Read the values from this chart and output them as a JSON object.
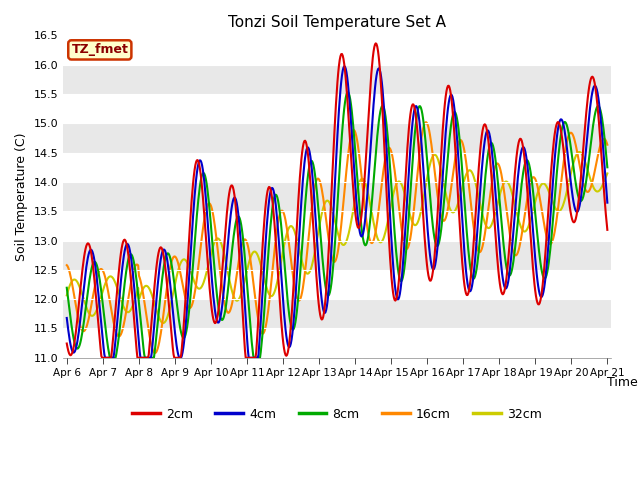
{
  "title": "Tonzi Soil Temperature Set A",
  "xlabel": "Time",
  "ylabel": "Soil Temperature (C)",
  "ylim": [
    11.0,
    16.5
  ],
  "yticks": [
    11.0,
    11.5,
    12.0,
    12.5,
    13.0,
    13.5,
    14.0,
    14.5,
    15.0,
    15.5,
    16.0,
    16.5
  ],
  "label_tag": "TZ_fmet",
  "bg_color": "#e8e8e8",
  "fig_color": "#ffffff",
  "colors": {
    "2cm": "#dd0000",
    "4cm": "#0000cc",
    "8cm": "#00aa00",
    "16cm": "#ff8800",
    "32cm": "#cccc00"
  },
  "x_day_labels": [
    "Apr 6",
    "Apr 7",
    "Apr 8",
    "Apr 9",
    "Apr 10",
    "Apr 11",
    "Apr 12",
    "Apr 13",
    "Apr 14",
    "Apr 15",
    "Apr 16",
    "Apr 17",
    "Apr 18",
    "Apr 19",
    "Apr 20",
    "Apr 21"
  ],
  "grid_colors": [
    "#ffffff",
    "#e0e0e0"
  ],
  "linewidth": 1.5
}
